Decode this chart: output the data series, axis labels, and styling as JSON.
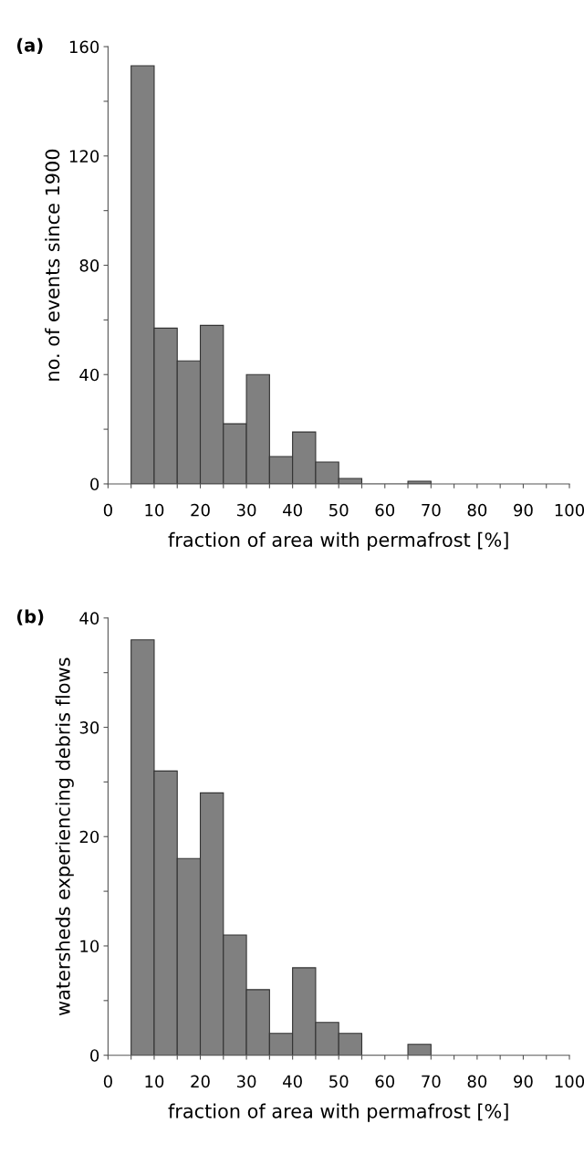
{
  "chart_data": [
    {
      "type": "histogram",
      "title": "(a)",
      "xlabel": "fraction of area with permafrost [%]",
      "ylabel": "no. of events since 1900",
      "color": "#808080",
      "bins": [
        5,
        10,
        15,
        20,
        25,
        30,
        35,
        40,
        45,
        50,
        55,
        60,
        65,
        70
      ],
      "values": [
        153,
        57,
        45,
        58,
        22,
        40,
        10,
        19,
        8,
        2,
        0,
        0,
        1
      ],
      "xlim": [
        0,
        100
      ],
      "ylim": [
        0,
        160
      ],
      "xticks": [
        0,
        {
          "value": 5,
          "label": null
        },
        10,
        {
          "value": 15,
          "label": null
        },
        20,
        {
          "value": 25,
          "label": null
        },
        30,
        {
          "value": 35,
          "label": null
        },
        40,
        {
          "value": 45,
          "label": null
        },
        50,
        {
          "value": 55,
          "label": null
        },
        60,
        {
          "value": 65,
          "label": null
        },
        70,
        {
          "value": 75,
          "label": null
        },
        80,
        {
          "value": 85,
          "label": null
        },
        90,
        {
          "value": 95,
          "label": null
        },
        100
      ],
      "yticks": [
        0,
        {
          "value": 20,
          "label": null
        },
        40,
        {
          "value": 60,
          "label": null
        },
        80,
        {
          "value": 100,
          "label": null
        },
        120,
        {
          "value": 140,
          "label": null
        },
        160
      ],
      "grid": false
    },
    {
      "type": "histogram",
      "title": "(b)",
      "xlabel": "fraction of area with permafrost [%]",
      "ylabel": "watersheds experiencing debris flows",
      "color": "#808080",
      "bins": [
        5,
        10,
        15,
        20,
        25,
        30,
        35,
        40,
        45,
        50,
        55,
        60,
        65,
        70
      ],
      "values": [
        38,
        26,
        18,
        24,
        11,
        6,
        2,
        8,
        3,
        2,
        0,
        0,
        1
      ],
      "xlim": [
        0,
        100
      ],
      "ylim": [
        0,
        40
      ],
      "xticks": [
        0,
        {
          "value": 5,
          "label": null
        },
        10,
        {
          "value": 15,
          "label": null
        },
        20,
        {
          "value": 25,
          "label": null
        },
        30,
        {
          "value": 35,
          "label": null
        },
        40,
        {
          "value": 45,
          "label": null
        },
        50,
        {
          "value": 55,
          "label": null
        },
        60,
        {
          "value": 65,
          "label": null
        },
        70,
        {
          "value": 75,
          "label": null
        },
        80,
        {
          "value": 85,
          "label": null
        },
        90,
        {
          "value": 95,
          "label": null
        },
        100
      ],
      "yticks": [
        0,
        {
          "value": 5,
          "label": null
        },
        10,
        {
          "value": 15,
          "label": null
        },
        20,
        {
          "value": 25,
          "label": null
        },
        30,
        {
          "value": 35,
          "label": null
        },
        40
      ],
      "grid": false
    }
  ]
}
